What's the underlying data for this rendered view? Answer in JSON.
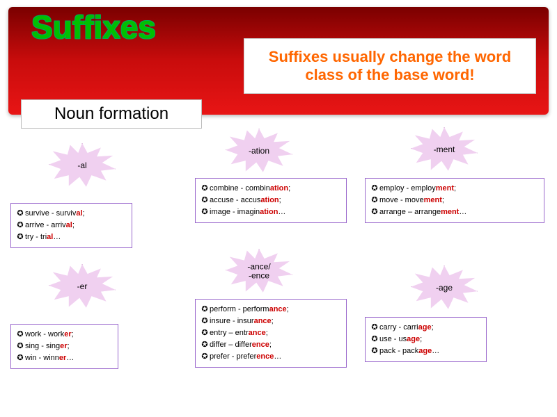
{
  "header": {
    "title": "Suffixes",
    "subtitle": "Suffixes usually change the word class of the base word!",
    "noun_label": "Noun formation"
  },
  "groups": [
    {
      "id": "al",
      "label": "-al",
      "items": [
        {
          "pre": "survive - surviv",
          "suf": "al",
          "post": ";"
        },
        {
          "pre": "arrive - arriv",
          "suf": "al",
          "post": ";"
        },
        {
          "pre": "try - tri",
          "suf": "al",
          "post": "…"
        }
      ]
    },
    {
      "id": "ation",
      "label": "-ation",
      "items": [
        {
          "pre": "combine - combin",
          "suf": "ation",
          "post": ";"
        },
        {
          "pre": "accuse - accus",
          "suf": "ation",
          "post": ";"
        },
        {
          "pre": "image - imagin",
          "suf": "ation",
          "post": "…"
        }
      ]
    },
    {
      "id": "ment",
      "label": "-ment",
      "items": [
        {
          "pre": "employ - employ",
          "suf": "ment",
          "post": ";"
        },
        {
          "pre": "move - move",
          "suf": "ment",
          "post": ";"
        },
        {
          "pre": "arrange – arrange",
          "suf": "ment",
          "post": "…"
        }
      ]
    },
    {
      "id": "er",
      "label": "-er",
      "items": [
        {
          "pre": "work - work",
          "suf": "er",
          "post": ";"
        },
        {
          "pre": "sing - sing",
          "suf": "er",
          "post": ";"
        },
        {
          "pre": "win - winn",
          "suf": "er",
          "post": "…"
        }
      ]
    },
    {
      "id": "ance",
      "label": "-ance/\n-ence",
      "items": [
        {
          "pre": "perform - perform",
          "suf": "ance",
          "post": ";"
        },
        {
          "pre": "insure - insur",
          "suf": "ance",
          "post": ";"
        },
        {
          "pre": "entry – entr",
          "suf": "ance",
          "post": ";"
        },
        {
          "pre": "differ – differ",
          "suf": "ence",
          "post": ";"
        },
        {
          "pre": "prefer - prefer",
          "suf": "ence",
          "post": "…"
        }
      ]
    },
    {
      "id": "age",
      "label": "-age",
      "items": [
        {
          "pre": "carry - carri",
          "suf": "age",
          "post": ";"
        },
        {
          "pre": "use - us",
          "suf": "age",
          "post": ";"
        },
        {
          "pre": "pack - pack",
          "suf": "age",
          "post": "…"
        }
      ]
    }
  ],
  "bullet": "✪",
  "colors": {
    "suffix": "#cc0000",
    "star_fill": "#f0d0f0",
    "star_border": "#a040a0",
    "box_border": "#9966cc",
    "title": "#00c000",
    "subtitle": "#ff6600"
  }
}
